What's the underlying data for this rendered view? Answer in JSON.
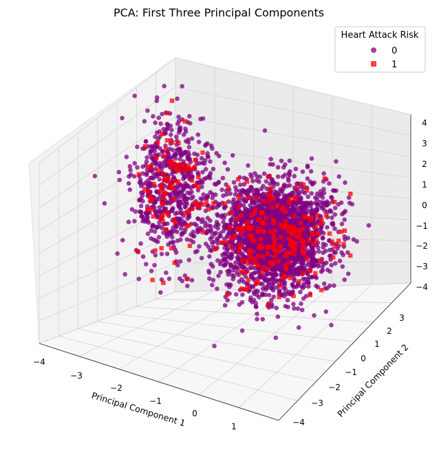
{
  "chart_data": {
    "type": "scatter",
    "projection": "3d",
    "title": "PCA: First Three Principal Components",
    "xlabel": "Principal Component 1",
    "ylabel": "Principal Component 2",
    "zlabel": "",
    "xlim": [
      -4,
      2
    ],
    "ylim": [
      -4,
      3
    ],
    "zlim": [
      -4,
      4
    ],
    "x_ticks": [
      "−4",
      "−3",
      "−2",
      "−1",
      "0",
      "1"
    ],
    "y_ticks": [
      "−4",
      "−3",
      "−2",
      "−1",
      "0",
      "1",
      "2",
      "3"
    ],
    "z_ticks": [
      "−4",
      "−3",
      "−2",
      "−1",
      "0",
      "1",
      "2",
      "3",
      "4"
    ],
    "grid": true,
    "legend": {
      "title": "Heart Attack Risk",
      "placement": "top-right",
      "entries": [
        {
          "label": "0",
          "marker": "circle",
          "color": "#800080"
        },
        {
          "label": "1",
          "marker": "square",
          "color": "#ff0000"
        }
      ]
    },
    "series": [
      {
        "name": "0",
        "color": "#800080",
        "marker": "circle",
        "clusters": [
          {
            "center": [
              -3.4,
              1.6,
              0.2
            ],
            "spread": [
              0.45,
              0.45,
              1.2
            ]
          },
          {
            "center": [
              0.0,
              0.0,
              0.0
            ],
            "spread": [
              0.65,
              0.65,
              1.0
            ]
          }
        ]
      },
      {
        "name": "1",
        "color": "#ff0000",
        "marker": "square",
        "clusters": [
          {
            "center": [
              -3.4,
              1.6,
              0.2
            ],
            "spread": [
              0.45,
              0.45,
              1.2
            ]
          },
          {
            "center": [
              0.0,
              0.0,
              0.0
            ],
            "spread": [
              0.65,
              0.65,
              1.0
            ]
          }
        ]
      }
    ]
  }
}
